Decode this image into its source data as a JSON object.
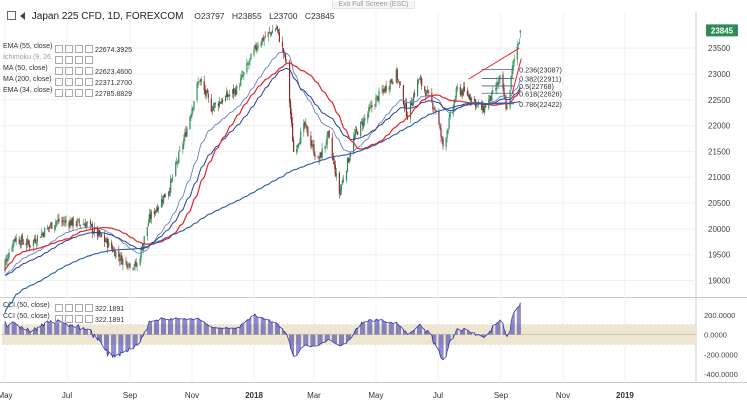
{
  "banner": {
    "exit_fullscreen": "Exit Full Screen (ESC)"
  },
  "header": {
    "symbol": "Japan 225 CFD, 1D, FOREXCOM",
    "open": "O23797",
    "high": "H23855",
    "low": "L23700",
    "close": "C23845"
  },
  "indicators": [
    {
      "name": "EMA (55, close)",
      "value": "22674.3925",
      "color": "#2a3f8f"
    },
    {
      "name": "Ichimoku (9, 26, 52, 26)",
      "value": "",
      "color": "#99aabb"
    },
    {
      "name": "MA (50, close)",
      "value": "22623.4600",
      "color": "#e8222a"
    },
    {
      "name": "MA (200, close)",
      "value": "22371.2700",
      "color": "#2a5caa"
    },
    {
      "name": "EMA (34, close)",
      "value": "22785.8829",
      "color": "#6a7fc2"
    }
  ],
  "cci_legend": [
    {
      "name": "CCI (50, close)",
      "value": "322.1891"
    },
    {
      "name": "CCI (50, close)",
      "value": "322.1891"
    }
  ],
  "fib_labels": [
    {
      "text": "0.236(23087)",
      "value": 23087
    },
    {
      "text": "0.382(22911)",
      "value": 22911
    },
    {
      "text": "0.5(22768)",
      "value": 22768
    },
    {
      "text": "0.618(22626)",
      "value": 22626
    },
    {
      "text": "0.786(22422)",
      "value": 22422
    }
  ],
  "colors": {
    "up": "#2e8b57",
    "down": "#8b2a2a",
    "ma50": "#e8222a",
    "ma200": "#2a5caa",
    "ema55": "#2a3f8f",
    "ema34": "#6a7fc2",
    "cci": "#3a3aa8",
    "band": "#efe6d2",
    "price_tag": "#2e8b57",
    "fib": "#4a5e82",
    "trend": "#e8222a",
    "grid": "#eef0f3"
  },
  "chart_data": {
    "type": "candlestick",
    "title": "Japan 225 CFD, 1D, FOREXCOM",
    "last_price": 23845,
    "last_price_label": "23845",
    "y_axis": {
      "ticks": [
        19000,
        19500,
        20000,
        20500,
        21000,
        21500,
        22000,
        22500,
        23000,
        23500
      ],
      "tick_labels": [
        "19000",
        "19500",
        "20000",
        "20500",
        "21000",
        "21500",
        "22000",
        "22500",
        "23000",
        "23500"
      ],
      "range": [
        18700,
        24200
      ]
    },
    "x_axis": {
      "labels": [
        "May",
        "Jul",
        "Sep",
        "Nov",
        "2018",
        "Mar",
        "May",
        "Jul",
        "Sep",
        "Nov",
        "2019"
      ],
      "bold": [
        "2018",
        "2019"
      ]
    },
    "cci": {
      "ticks": [
        -400,
        -200,
        0,
        200
      ],
      "tick_labels": [
        "-400.0000",
        "-200.0000",
        "0.0000",
        "200.0000"
      ],
      "band": [
        -100,
        100
      ],
      "last": 322.1891
    },
    "fib_levels": [
      23087,
      22911,
      22768,
      22626,
      22422
    ],
    "anchors": [
      [
        "2017-04-26",
        19080
      ],
      [
        "2017-05-10",
        19820
      ],
      [
        "2017-05-25",
        19700
      ],
      [
        "2017-06-20",
        20150
      ],
      [
        "2017-07-20",
        20100
      ],
      [
        "2017-08-10",
        19720
      ],
      [
        "2017-08-25",
        19380
      ],
      [
        "2017-09-08",
        19280
      ],
      [
        "2017-09-20",
        20200
      ],
      [
        "2017-10-10",
        20800
      ],
      [
        "2017-10-25",
        21800
      ],
      [
        "2017-11-08",
        22900
      ],
      [
        "2017-11-20",
        22350
      ],
      [
        "2017-12-15",
        22700
      ],
      [
        "2018-01-05",
        23600
      ],
      [
        "2018-01-23",
        23900
      ],
      [
        "2018-02-02",
        23200
      ],
      [
        "2018-02-09",
        21500
      ],
      [
        "2018-02-20",
        22000
      ],
      [
        "2018-03-05",
        21300
      ],
      [
        "2018-03-15",
        21800
      ],
      [
        "2018-03-26",
        20700
      ],
      [
        "2018-04-10",
        21800
      ],
      [
        "2018-05-01",
        22500
      ],
      [
        "2018-05-21",
        23000
      ],
      [
        "2018-06-01",
        22200
      ],
      [
        "2018-06-12",
        22900
      ],
      [
        "2018-06-29",
        22300
      ],
      [
        "2018-07-06",
        21600
      ],
      [
        "2018-07-20",
        22700
      ],
      [
        "2018-07-31",
        22600
      ],
      [
        "2018-08-14",
        22300
      ],
      [
        "2018-08-24",
        22600
      ],
      [
        "2018-08-31",
        22900
      ],
      [
        "2018-09-07",
        22300
      ],
      [
        "2018-09-13",
        23200
      ],
      [
        "2018-09-20",
        23800
      ]
    ]
  }
}
